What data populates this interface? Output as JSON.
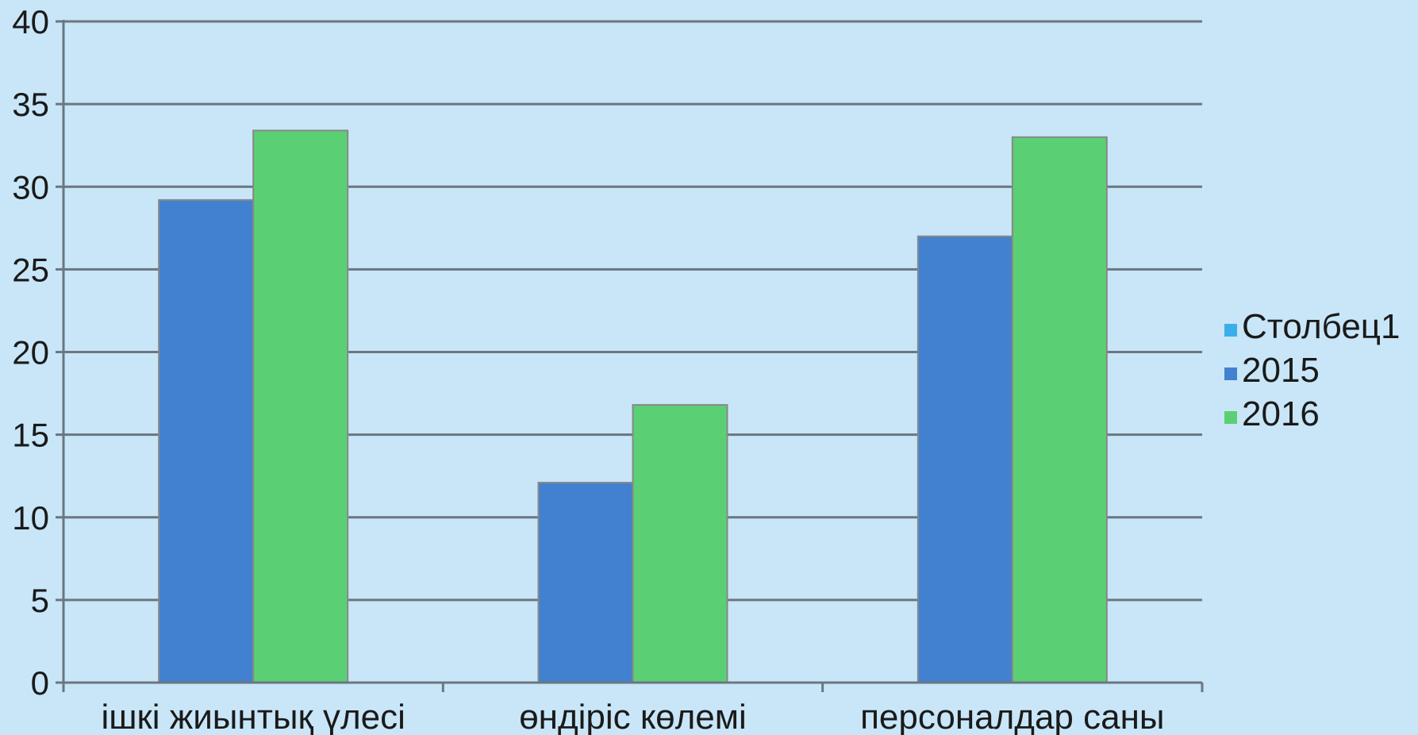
{
  "chart_data": {
    "type": "bar",
    "categories": [
      "ішкі жиынтық үлесі",
      "өндіріс көлемі",
      "персоналдар саны"
    ],
    "series": [
      {
        "name": "Столбец1",
        "values": [
          0,
          0,
          0
        ],
        "color": "#3aaee8"
      },
      {
        "name": "2015",
        "values": [
          29.2,
          12.1,
          27.0
        ],
        "color": "#4281d0"
      },
      {
        "name": "2016",
        "values": [
          33.4,
          16.8,
          33.0
        ],
        "color": "#5bcf74"
      }
    ],
    "ylim": [
      0,
      40
    ],
    "yticks": [
      0,
      5,
      10,
      15,
      20,
      25,
      30,
      35,
      40
    ],
    "title": "",
    "xlabel": "",
    "ylabel": "",
    "grid": true,
    "legend_position": "right"
  },
  "colors": {
    "background": "#c8e6f8",
    "gridline": "#6b7680",
    "bar_border": "#888888"
  }
}
